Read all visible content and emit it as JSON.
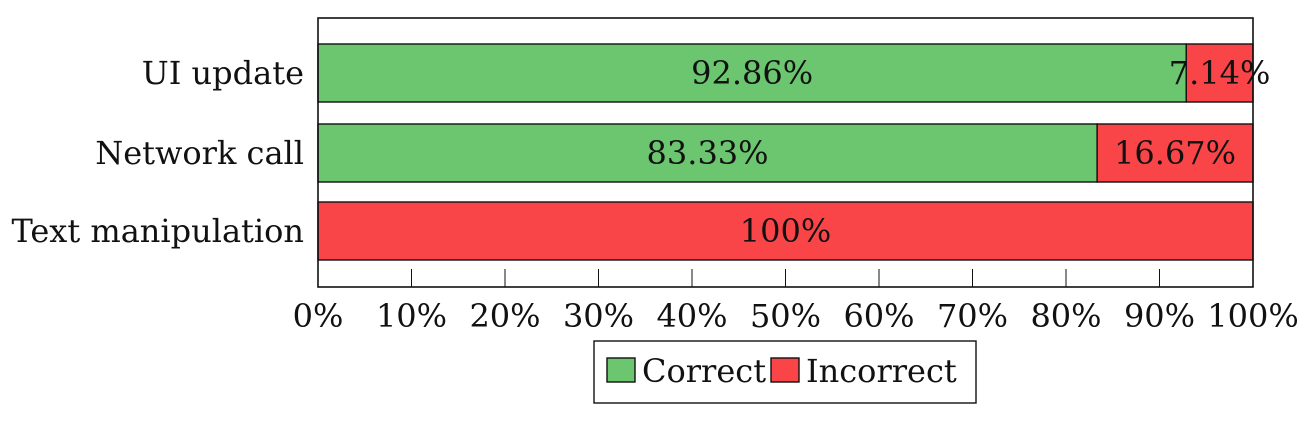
{
  "chart_data": {
    "type": "bar",
    "orientation": "horizontal",
    "stacked": true,
    "categories": [
      "UI update",
      "Network call",
      "Text manipulation"
    ],
    "series": [
      {
        "name": "Correct",
        "color": "#6cc56f",
        "values": [
          92.86,
          83.33,
          0
        ],
        "labels": [
          "92.86%",
          "83.33%",
          ""
        ]
      },
      {
        "name": "Incorrect",
        "color": "#f94548",
        "values": [
          7.14,
          16.67,
          100
        ],
        "labels": [
          "7.14%",
          "16.67%",
          "100%"
        ]
      }
    ],
    "xlim": [
      0,
      100
    ],
    "xticks": [
      0,
      10,
      20,
      30,
      40,
      50,
      60,
      70,
      80,
      90,
      100
    ],
    "xtick_labels": [
      "0%",
      "10%",
      "20%",
      "30%",
      "40%",
      "50%",
      "60%",
      "70%",
      "80%",
      "90%",
      "100%"
    ],
    "grid": false,
    "legend_position": "bottom"
  }
}
